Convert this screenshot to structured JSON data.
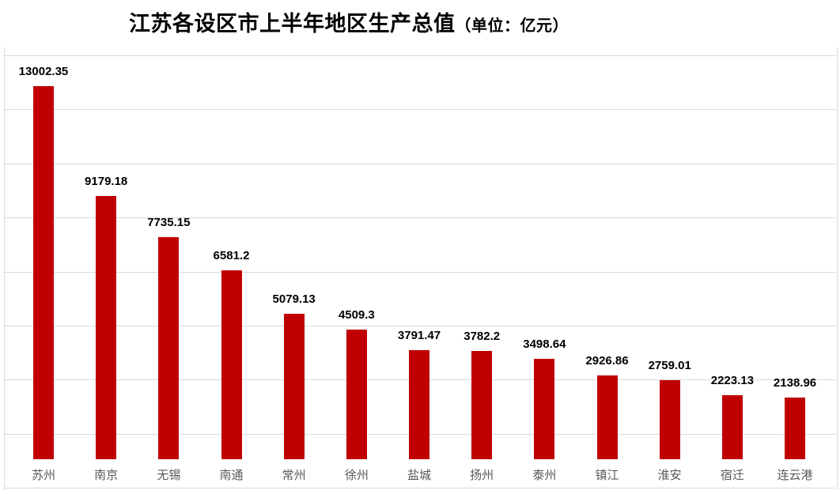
{
  "title": {
    "main": "江苏各设区市上半年地区生产总值",
    "unit": "（单位：亿元）"
  },
  "chart_data": {
    "type": "bar",
    "title": "江苏各设区市上半年地区生产总值",
    "unit_note": "（单位：亿元）",
    "categories": [
      "苏州",
      "南京",
      "无锡",
      "南通",
      "常州",
      "徐州",
      "盐城",
      "扬州",
      "泰州",
      "镇江",
      "淮安",
      "宿迁",
      "连云港"
    ],
    "values": [
      13002.35,
      9179.18,
      7735.15,
      6581.2,
      5079.13,
      4509.3,
      3791.47,
      3782.2,
      3498.64,
      2926.86,
      2759.01,
      2223.13,
      2138.96
    ],
    "value_labels": [
      "13002.35",
      "9179.18",
      "7735.15",
      "6581.2",
      "5079.13",
      "4509.3",
      "3791.47",
      "3782.2",
      "3498.64",
      "2926.86",
      "2759.01",
      "2223.13",
      "2138.96"
    ],
    "xlabel": "",
    "ylabel": "",
    "ylim": [
      0,
      14000
    ],
    "y_axis_labels_visible": false,
    "grid": "horizontal, unlabeled light-gray lines",
    "legend": "none",
    "bar_color": "#c00000",
    "value_label_color": "#000000",
    "category_label_color": "#595959",
    "gridline_color": "#d9d9d9",
    "background_color": "#ffffff"
  }
}
